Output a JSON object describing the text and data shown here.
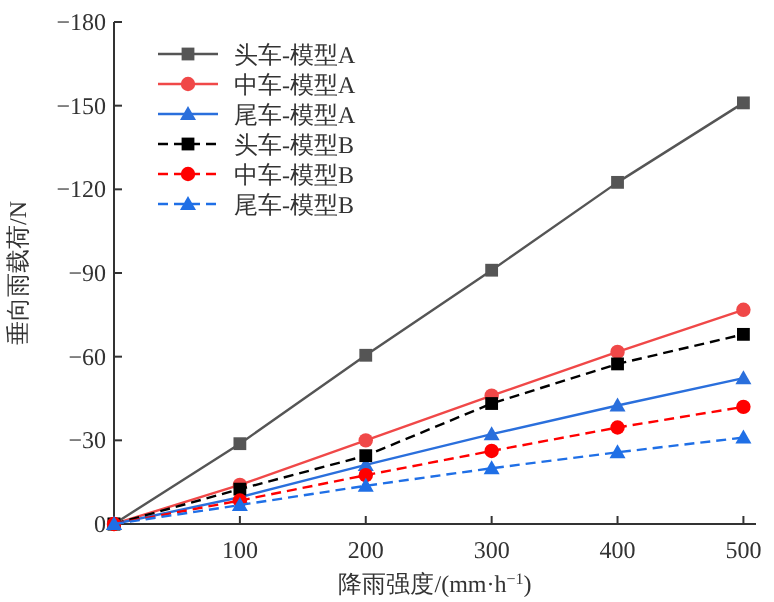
{
  "chart_data": {
    "type": "line",
    "xlabel": "降雨强度/(mm·h$^{−1}$)",
    "ylabel": "垂向雨载荷/N",
    "x": [
      0,
      100,
      200,
      300,
      400,
      500
    ],
    "xlim": [
      0,
      510
    ],
    "xticks": [
      {
        "value": 0,
        "label": null
      },
      100,
      200,
      300,
      400,
      500
    ],
    "ylim": [
      0,
      -180
    ],
    "yticks": [
      0,
      -30,
      -60,
      -90,
      -120,
      -150,
      -180
    ],
    "legend": "top left",
    "grid": false,
    "series": [
      {
        "name": "头车-模型A",
        "color": "#555555",
        "marker": "square",
        "line_style": "solid",
        "values": [
          0,
          -28.8,
          -60.5,
          -91,
          -122.5,
          -151
        ]
      },
      {
        "name": "中车-模型A",
        "color": "#f04848",
        "marker": "circle",
        "line_style": "solid",
        "values": [
          0,
          -14,
          -30,
          -46,
          -61.7,
          -76.8
        ]
      },
      {
        "name": "尾车-模型A",
        "color": "#2a6fdc",
        "marker": "triangle",
        "line_style": "solid",
        "values": [
          0,
          -9.6,
          -21.2,
          -32.2,
          -42.5,
          -52.3
        ]
      },
      {
        "name": "头车-模型B",
        "color": "#000000",
        "marker": "square",
        "line_style": "dashed",
        "values": [
          0,
          -12.5,
          -24.5,
          -43.2,
          -57.4,
          -68
        ]
      },
      {
        "name": "中车-模型B",
        "color": "#ff0000",
        "marker": "circle",
        "line_style": "dashed",
        "values": [
          0,
          -8.4,
          -17.5,
          -26.2,
          -34.6,
          -42
        ]
      },
      {
        "name": "尾车-模型B",
        "color": "#1f6fe6",
        "marker": "triangle",
        "line_style": "dashed",
        "values": [
          0,
          -6.8,
          -13.7,
          -20,
          -25.7,
          -31
        ]
      }
    ]
  }
}
